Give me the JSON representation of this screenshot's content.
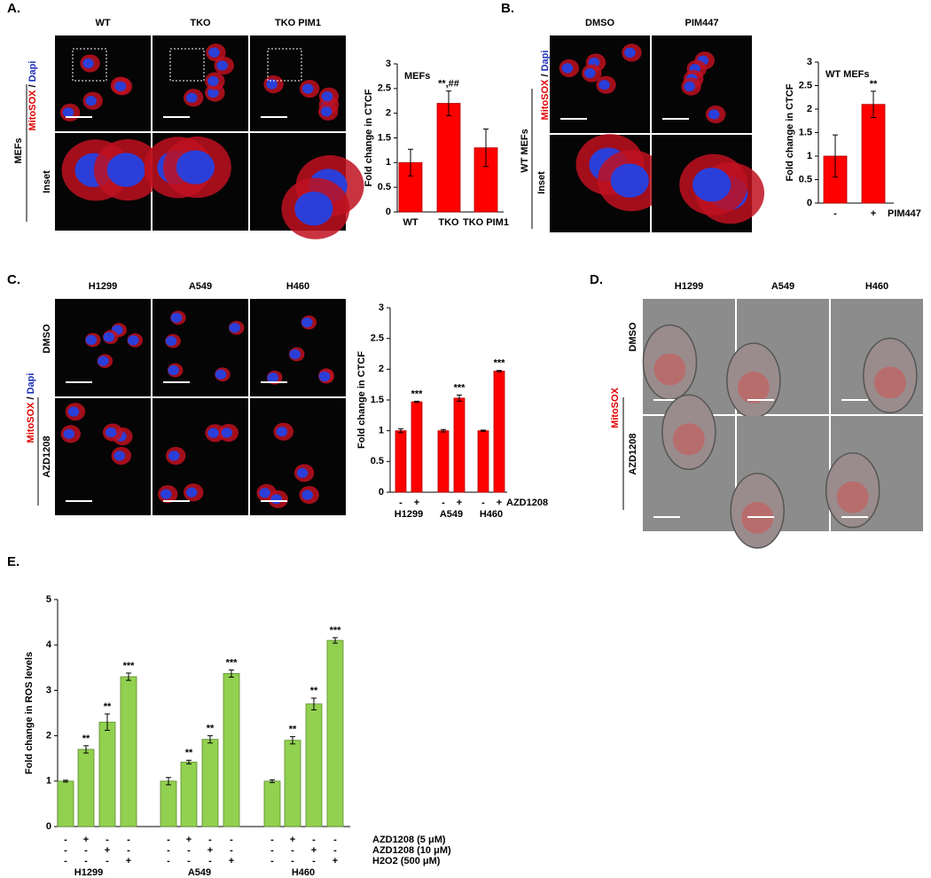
{
  "panels": [
    {
      "label": "A.",
      "columns": [
        "WT",
        "TKO",
        "TKO PIM1"
      ],
      "stain": [
        "MitoSOX",
        "/",
        "Dapi"
      ],
      "group": "MEFs",
      "rows": [
        null,
        "Inset"
      ]
    },
    {
      "label": "B.",
      "columns": [
        "DMSO",
        "PIM447"
      ],
      "stain": [
        "MitoSOX",
        "/",
        "Dapi"
      ],
      "group": "WT MEFs",
      "rows": [
        null,
        "Inset"
      ]
    },
    {
      "label": "C.",
      "columns": [
        "H1299",
        "A549",
        "H460"
      ],
      "stain": [
        "MitoSOX",
        "/",
        "Dapi"
      ],
      "rows": [
        "DMSO",
        "AZD1208"
      ]
    },
    {
      "label": "D.",
      "columns": [
        "H1299",
        "A549",
        "H460"
      ],
      "stain": [
        "MitoSOX"
      ],
      "rows": [
        "DMSO",
        "AZD1208"
      ]
    },
    {
      "label": "E."
    }
  ],
  "chart_data": [
    {
      "type": "bar",
      "label": "MEFs",
      "ylabel": "Fold change in CTCF",
      "categories": [
        "WT",
        "TKO",
        "TKO PIM1"
      ],
      "values": [
        1,
        2.2,
        1.3
      ],
      "errors": [
        0.27,
        0.25,
        0.38
      ],
      "annotations": [
        null,
        "**,##",
        null
      ],
      "color": "#ff0000",
      "ylim": [
        0,
        3
      ],
      "yticks": [
        0,
        0.5,
        1,
        1.5,
        2,
        2.5,
        3
      ]
    },
    {
      "type": "bar",
      "label": "WT MEFs",
      "ylabel": "Fold change in CTCF",
      "categories": [
        "-",
        "+"
      ],
      "x_label": "PIM447",
      "values": [
        1,
        2.1
      ],
      "errors": [
        0.45,
        0.28
      ],
      "annotations": [
        null,
        "**"
      ],
      "color": "#ff0000",
      "ylim": [
        0,
        3
      ],
      "yticks": [
        0,
        0.5,
        1,
        1.5,
        2,
        2.5,
        3
      ]
    },
    {
      "type": "bar",
      "ylabel": "Fold change in CTCF",
      "categories": [
        "-",
        "+",
        "-",
        "+",
        "-",
        "+"
      ],
      "groups": [
        "H1299",
        "A549",
        "H460"
      ],
      "x_label": "AZD1208",
      "values": [
        1,
        1.47,
        1,
        1.53,
        1,
        1.97
      ],
      "errors": [
        0.03,
        0.01,
        0.02,
        0.05,
        0.01,
        0.01
      ],
      "annotations": [
        null,
        "***",
        null,
        "***",
        null,
        "***"
      ],
      "color": "#ff0000",
      "ylim": [
        0,
        3
      ],
      "yticks": [
        0,
        0.5,
        1,
        1.5,
        2,
        2.5,
        3
      ]
    },
    {
      "type": "bar",
      "ylabel": "Fold change in ROS levels",
      "values": [
        1,
        1.7,
        2.3,
        3.3,
        1,
        1.42,
        1.92,
        3.37,
        1,
        1.9,
        2.7,
        4.1
      ],
      "errors": [
        0.02,
        0.08,
        0.18,
        0.08,
        0.08,
        0.04,
        0.08,
        0.08,
        0.03,
        0.08,
        0.13,
        0.06
      ],
      "annotations": [
        null,
        "**",
        "**",
        "***",
        null,
        "**",
        "**",
        "***",
        null,
        "**",
        "**",
        "***"
      ],
      "treatments": [
        {
          "name": "AZD1208 (5 μM)",
          "signs": [
            "-",
            "+",
            "-",
            "-",
            "-",
            "+",
            "-",
            "-",
            "-",
            "+",
            "-",
            "-"
          ]
        },
        {
          "name": "AZD1208 (10 μM)",
          "signs": [
            "-",
            "-",
            "+",
            "-",
            "-",
            "-",
            "+",
            "-",
            "-",
            "-",
            "+",
            "-"
          ]
        },
        {
          "name": "H2O2 (500 μM)",
          "signs": [
            "-",
            "-",
            "-",
            "+",
            "-",
            "-",
            "-",
            "+",
            "-",
            "-",
            "-",
            "+"
          ]
        }
      ],
      "groups": [
        "H1299",
        "A549",
        "H460"
      ],
      "color": "#92d050",
      "ylim": [
        0,
        5
      ],
      "yticks": [
        0,
        1,
        2,
        3,
        4,
        5
      ]
    }
  ]
}
